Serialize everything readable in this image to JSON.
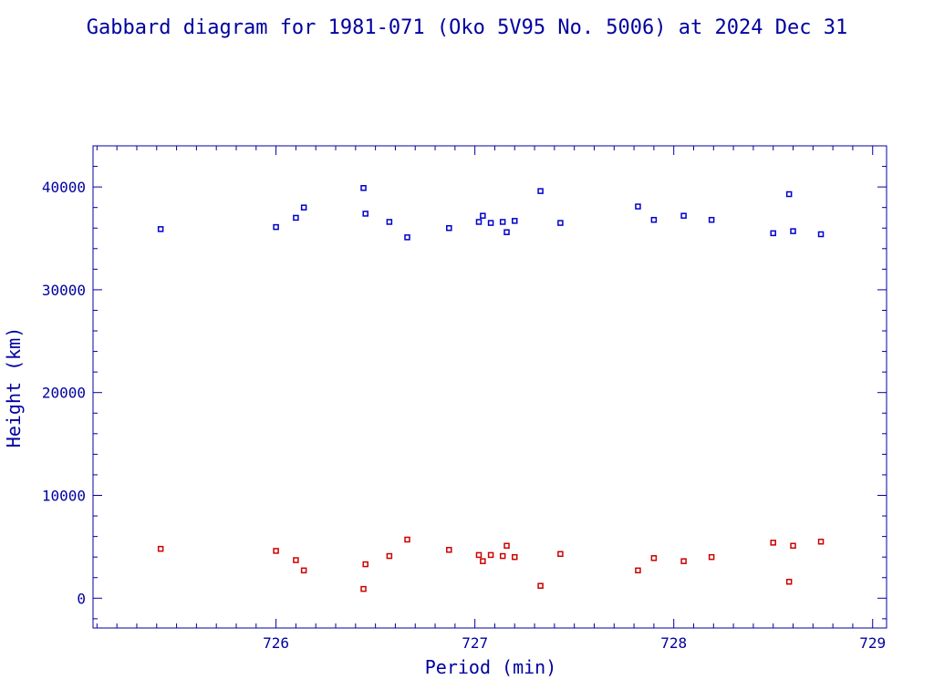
{
  "chart_data": {
    "type": "scatter",
    "title": "Gabbard diagram for 1981-071 (Oko 5V95 No. 5006) at 2024 Dec 31",
    "xlabel": "Period (min)",
    "ylabel": "Height (km)",
    "xlim": [
      725.08,
      729.07
    ],
    "ylim": [
      -2900,
      44000
    ],
    "x_ticks": [
      726,
      727,
      728,
      729
    ],
    "y_ticks": [
      0,
      10000,
      20000,
      30000,
      40000
    ],
    "grid": false,
    "series": [
      {
        "color": "#0000cc",
        "points": [
          [
            725.42,
            35900
          ],
          [
            726.0,
            36100
          ],
          [
            726.1,
            37000
          ],
          [
            726.14,
            38000
          ],
          [
            726.44,
            39900
          ],
          [
            726.45,
            37400
          ],
          [
            726.57,
            36600
          ],
          [
            726.66,
            35100
          ],
          [
            726.87,
            36000
          ],
          [
            727.02,
            36600
          ],
          [
            727.04,
            37200
          ],
          [
            727.08,
            36500
          ],
          [
            727.14,
            36600
          ],
          [
            727.16,
            35600
          ],
          [
            727.2,
            36700
          ],
          [
            727.33,
            39600
          ],
          [
            727.43,
            36500
          ],
          [
            727.82,
            38100
          ],
          [
            727.9,
            36800
          ],
          [
            728.05,
            37200
          ],
          [
            728.19,
            36800
          ],
          [
            728.5,
            35500
          ],
          [
            728.58,
            39300
          ],
          [
            728.6,
            35700
          ],
          [
            728.74,
            35400
          ]
        ]
      },
      {
        "color": "#cc0000",
        "points": [
          [
            725.42,
            4800
          ],
          [
            726.0,
            4600
          ],
          [
            726.1,
            3700
          ],
          [
            726.14,
            2700
          ],
          [
            726.44,
            900
          ],
          [
            726.45,
            3300
          ],
          [
            726.57,
            4100
          ],
          [
            726.66,
            5700
          ],
          [
            726.87,
            4700
          ],
          [
            727.02,
            4200
          ],
          [
            727.04,
            3600
          ],
          [
            727.08,
            4200
          ],
          [
            727.14,
            4100
          ],
          [
            727.16,
            5100
          ],
          [
            727.2,
            4000
          ],
          [
            727.33,
            1200
          ],
          [
            727.43,
            4300
          ],
          [
            727.82,
            2700
          ],
          [
            727.9,
            3900
          ],
          [
            728.05,
            3600
          ],
          [
            728.19,
            4000
          ],
          [
            728.5,
            5400
          ],
          [
            728.58,
            1600
          ],
          [
            728.6,
            5100
          ],
          [
            728.74,
            5500
          ]
        ]
      }
    ]
  }
}
